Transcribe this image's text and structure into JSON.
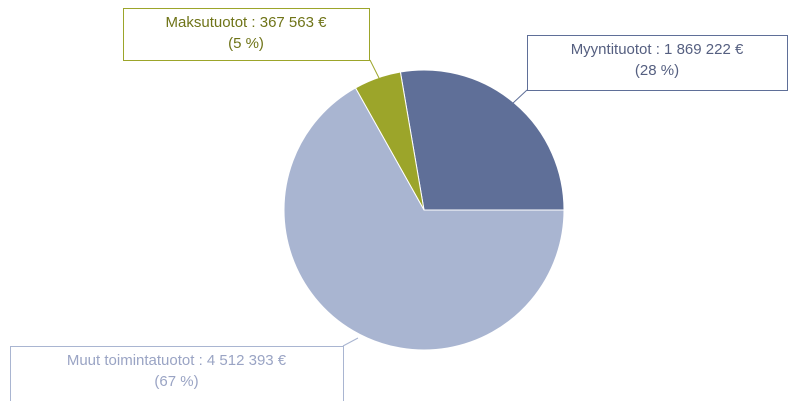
{
  "chart_data": {
    "type": "pie",
    "values": [
      1869222,
      367563,
      4512393
    ],
    "value_labels": [
      "Myyntituotot : 1 869 222 €",
      "Maksutuotot : 367 563 €",
      "Muut toimintatuotot : 4 512 393 €"
    ],
    "percent_labels": [
      "(28 %)",
      "(5 %)",
      "(67 %)"
    ],
    "colors": [
      "#5f6f98",
      "#9ca52a",
      "#a9b5d1"
    ]
  }
}
